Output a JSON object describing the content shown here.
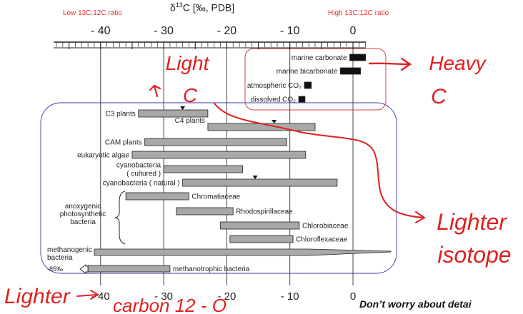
{
  "header": {
    "axis_title_prefix": "δ",
    "axis_title_sup": "13",
    "axis_title_rest": "C [‰, PDB]",
    "low_ratio_note": "Low 13C:12C ratio",
    "high_ratio_note": "High 13C:12C ratio"
  },
  "axis": {
    "top_tick_labels": [
      "- 40",
      "- 30",
      "- 20",
      "- 10",
      "0"
    ],
    "bottom_tick_labels": [
      "- 40",
      "- 30",
      "- 20",
      "- 10",
      "0"
    ]
  },
  "bars": [
    {
      "name": "marine carbonate",
      "label": "marine carbonate",
      "from": -0.5,
      "to": 2.0,
      "fill": "#111111",
      "label_side": "left"
    },
    {
      "name": "marine bicarbonate",
      "label": "marine bicarbonate",
      "from": -2.0,
      "to": 1.2,
      "fill": "#111111",
      "label_side": "left"
    },
    {
      "name": "atmospheric co2",
      "label": "atmospheric CO₂",
      "from": -7.7,
      "to": -6.6,
      "fill": "#111111",
      "label_side": "left"
    },
    {
      "name": "dissolved co2",
      "label": "dissolved CO₂",
      "from": -8.6,
      "to": -7.6,
      "fill": "#111111",
      "label_side": "left"
    },
    {
      "name": "c3 plants",
      "label": "C3 plants",
      "from": -34,
      "to": -23,
      "fill": "#a8a8a8",
      "label_side": "left",
      "marker": -27
    },
    {
      "name": "c4 plants",
      "label": "C4 plants",
      "from": -23,
      "to": -6,
      "fill": "#a8a8a8",
      "label_side": "above",
      "marker": -12.5
    },
    {
      "name": "cam plants",
      "label": "CAM plants",
      "from": -33,
      "to": -10.5,
      "fill": "#a8a8a8",
      "label_side": "left"
    },
    {
      "name": "eukaryotic algae",
      "label": "eukaryotic algae",
      "from": -35,
      "to": -7.5,
      "fill": "#a8a8a8",
      "label_side": "left"
    },
    {
      "name": "cyanobacteria cultured",
      "label": "cyanobacteria\n( cultured )",
      "from": -30,
      "to": -17.5,
      "fill": "#a8a8a8",
      "label_side": "left"
    },
    {
      "name": "cyanobacteria natural",
      "label": "cyanobacteria ( natural )",
      "from": -27,
      "to": -2.5,
      "fill": "#a8a8a8",
      "label_side": "left",
      "marker": -15.5
    },
    {
      "name": "chromatiaceae",
      "label": "Chromatiaceae",
      "from": -36,
      "to": -26,
      "fill": "#a8a8a8",
      "label_side": "right"
    },
    {
      "name": "rhodospirillaceae",
      "label": "Rhodospirillaceae",
      "from": -28,
      "to": -19,
      "fill": "#a8a8a8",
      "label_side": "right"
    },
    {
      "name": "chlorobiaceae",
      "label": "Chlorobiaceae",
      "from": -21,
      "to": -8.5,
      "fill": "#a8a8a8",
      "label_side": "right"
    },
    {
      "name": "chloroflexaceae",
      "label": "Chloroflexaceae",
      "from": -19.5,
      "to": -9.5,
      "fill": "#a8a8a8",
      "label_side": "right"
    },
    {
      "name": "methanotrophic bacteria",
      "label": "methanotrophic bacteria",
      "from": -42,
      "to": -29,
      "fill": "#a8a8a8",
      "label_side": "right"
    }
  ],
  "methanogenic": {
    "label": "methanogenic\nbacteria",
    "from": -41,
    "to": -7,
    "tail_to": 6
  },
  "anoxygenic_label": "anoxygenic\nphotosynthetic\nbacteria",
  "offscale_label": "-85‰",
  "annotations": {
    "light_c": "Light\nC",
    "heavy_c": "Heavy\nC",
    "lighter_isotope": "Lighter\nisotope",
    "lighter_bottom": "Lighter",
    "carbon12": "carbon 12 - O",
    "footer_note": "Don’t worry about detai"
  },
  "colors": {
    "annotation_red": "#e02020",
    "bar_gray": "#a8a8a8",
    "box_blue": "#3b3bb0",
    "box_red": "#d94040"
  }
}
